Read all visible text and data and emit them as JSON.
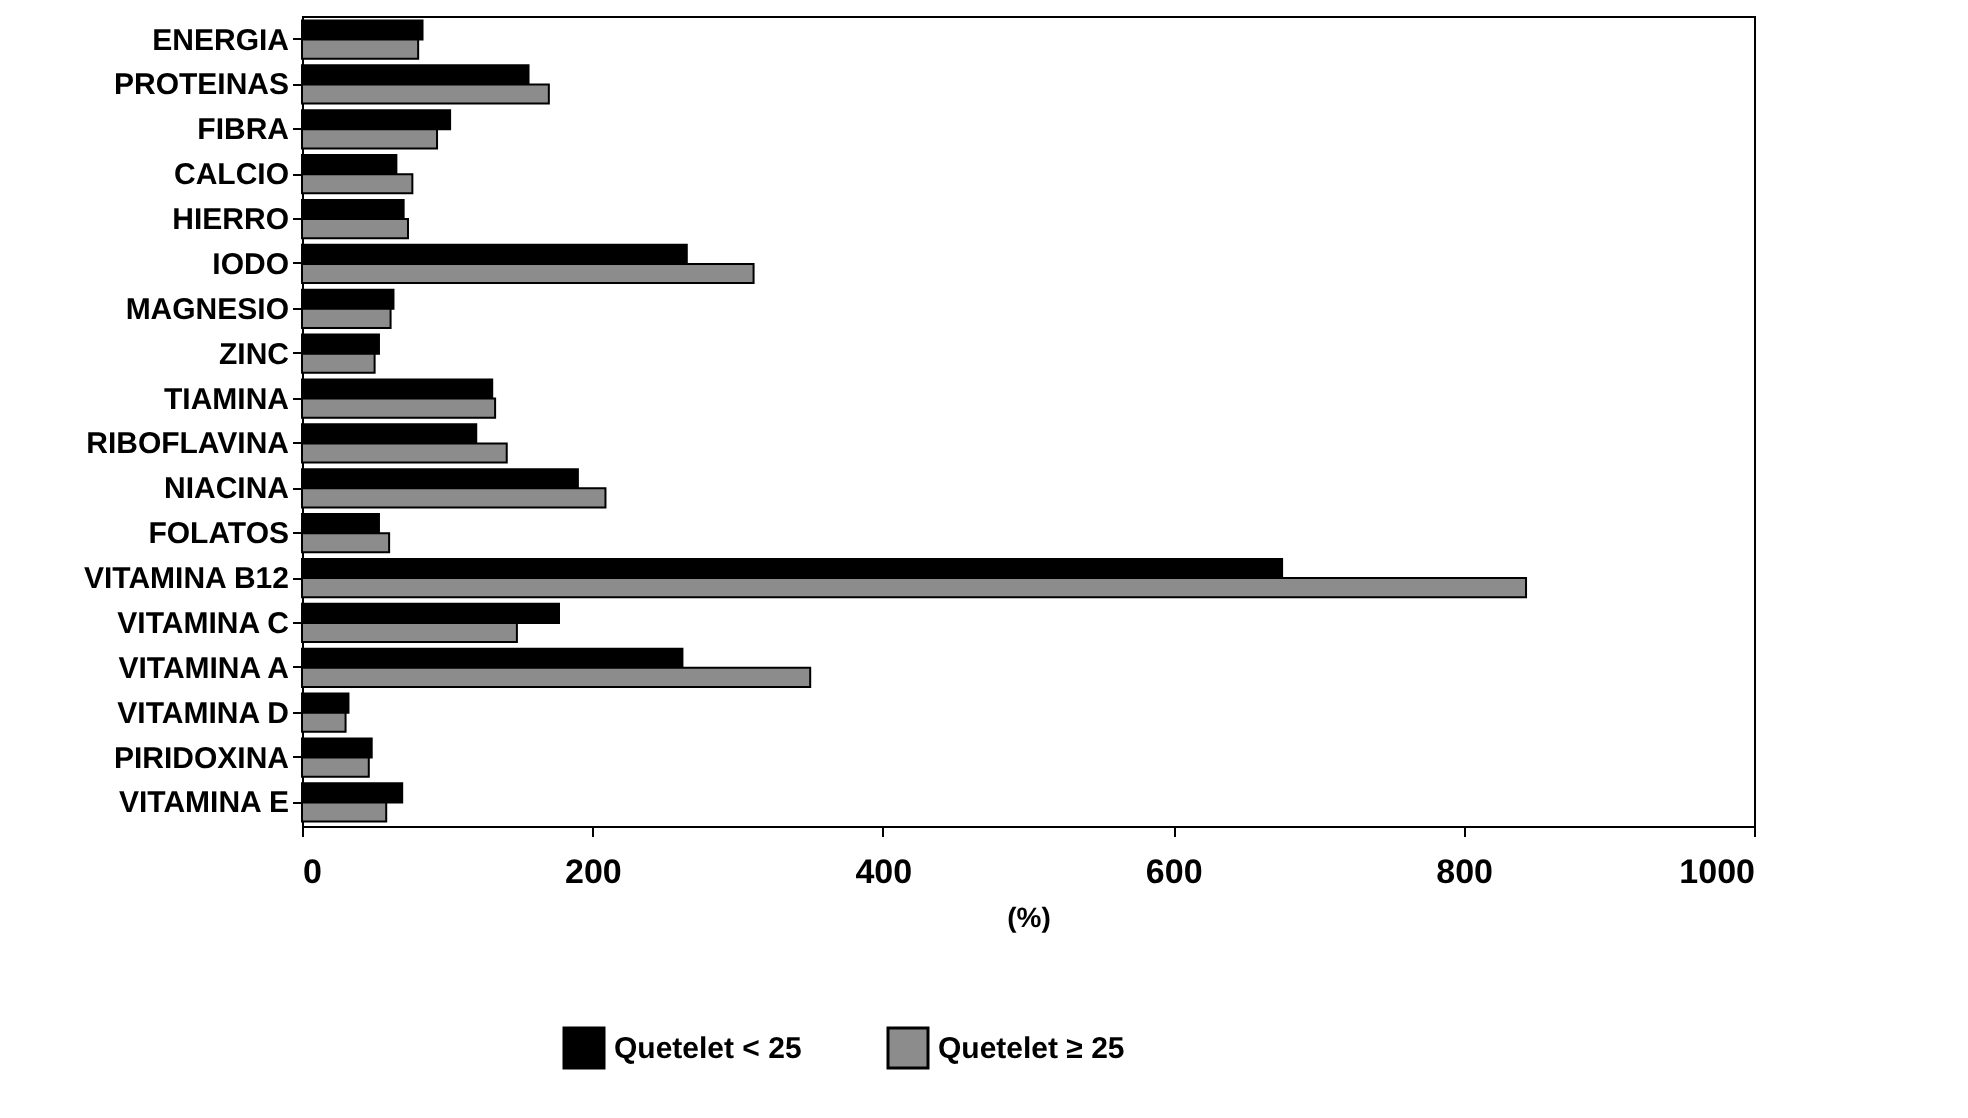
{
  "chart_data": {
    "type": "bar",
    "orientation": "horizontal",
    "xlabel": "(%)",
    "categories": [
      "ENERGIA",
      "PROTEINAS",
      "FIBRA",
      "CALCIO",
      "HIERRO",
      "IODO",
      "MAGNESIO",
      "ZINC",
      "TIAMINA",
      "RIBOFLAVINA",
      "NIACINA",
      "FOLATOS",
      "VITAMINA B12",
      "VITAMINA C",
      "VITAMINA A",
      "VITAMINA D",
      "PIRIDOXINA",
      "VITAMINA E"
    ],
    "series": [
      {
        "name": "Quetelet < 25",
        "color": "#000000",
        "values": [
          83,
          156,
          102,
          65,
          70,
          265,
          63,
          53,
          131,
          120,
          190,
          53,
          675,
          177,
          262,
          32,
          48,
          69
        ]
      },
      {
        "name": "Quetelet ≥ 25",
        "color": "#8c8c8c",
        "values": [
          80,
          170,
          93,
          76,
          73,
          311,
          61,
          50,
          133,
          141,
          209,
          60,
          843,
          148,
          350,
          30,
          46,
          58
        ]
      }
    ],
    "xlim": [
      0,
      1000
    ],
    "xticks": [
      0,
      200,
      400,
      600,
      800,
      1000
    ],
    "grid": false,
    "legend": "bottom"
  }
}
